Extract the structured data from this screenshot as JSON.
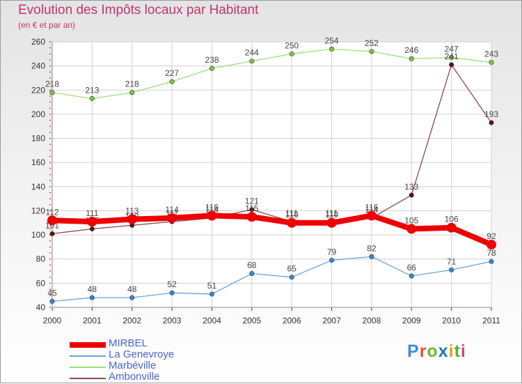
{
  "header": {
    "title": "Evolution des Impôts locaux par Habitant",
    "subtitle": "(en € et par an)"
  },
  "logo": {
    "text": "Proxiti",
    "letters": [
      "P",
      "r",
      "o",
      "x",
      "i",
      "t",
      "i"
    ],
    "colors": [
      "#3a8ed6",
      "#e4532c",
      "#6cbb2a",
      "#1b77c9",
      "#e6a20b",
      "#5fae2c",
      "#d04a7b"
    ]
  },
  "chart_data": {
    "type": "line",
    "title": "Evolution des Impôts locaux par Habitant",
    "subtitle": "(en € et par an)",
    "xlabel": "",
    "ylabel": "",
    "categories": [
      "2000",
      "2001",
      "2002",
      "2003",
      "2004",
      "2005",
      "2006",
      "2007",
      "2008",
      "2009",
      "2010",
      "2011"
    ],
    "ylim": [
      40,
      260
    ],
    "yticks": [
      40,
      60,
      80,
      100,
      120,
      140,
      160,
      180,
      200,
      220,
      240,
      260
    ],
    "legend_position": "bottom-left",
    "series": [
      {
        "name": "MIRBEL",
        "color": "#ee0000",
        "marker": "#ee0000",
        "bold": true,
        "values": [
          112,
          111,
          113,
          114,
          116,
          115,
          110,
          110,
          116,
          105,
          106,
          92
        ]
      },
      {
        "name": "La Genevroye",
        "color": "#6aa5d8",
        "marker": "#3a87d0",
        "values": [
          45,
          48,
          48,
          52,
          51,
          68,
          65,
          79,
          82,
          66,
          71,
          78
        ]
      },
      {
        "name": "Marbéville",
        "color": "#9fde75",
        "marker": "#77c83f",
        "values": [
          218,
          213,
          218,
          227,
          238,
          244,
          250,
          254,
          252,
          246,
          247,
          243
        ]
      },
      {
        "name": "Ambonville",
        "color": "#8a4a4a",
        "marker": "#5e1414",
        "values": [
          101,
          105,
          108,
          111,
          114,
          121,
          111,
          111,
          114,
          133,
          241,
          193
        ]
      }
    ]
  }
}
